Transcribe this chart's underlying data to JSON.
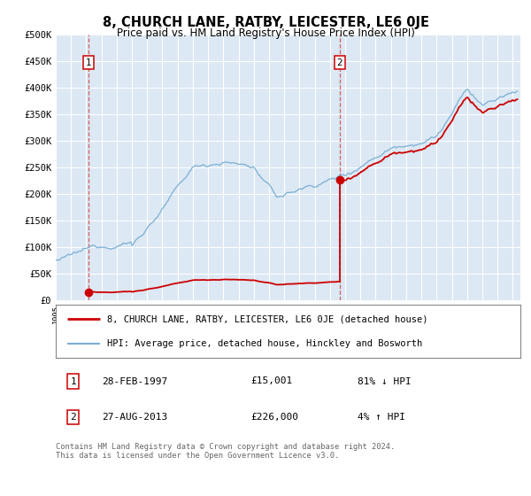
{
  "title": "8, CHURCH LANE, RATBY, LEICESTER, LE6 0JE",
  "subtitle": "Price paid vs. HM Land Registry's House Price Index (HPI)",
  "background_color": "#ffffff",
  "plot_bg_color": "#dce8f4",
  "grid_color": "#ffffff",
  "ylim": [
    0,
    500000
  ],
  "yticks": [
    0,
    50000,
    100000,
    150000,
    200000,
    250000,
    300000,
    350000,
    400000,
    450000,
    500000
  ],
  "ytick_labels": [
    "£0",
    "£50K",
    "£100K",
    "£150K",
    "£200K",
    "£250K",
    "£300K",
    "£350K",
    "£400K",
    "£450K",
    "£500K"
  ],
  "sale1_date": 1997.16,
  "sale1_price": 15001,
  "sale1_label": "1",
  "sale2_date": 2013.65,
  "sale2_price": 226000,
  "sale2_label": "2",
  "hpi_line_color": "#7bafd4",
  "sale_line_color": "#cc0000",
  "sale_dot_color": "#cc0000",
  "vline_color": "#cc0000",
  "legend_line1": "8, CHURCH LANE, RATBY, LEICESTER, LE6 0JE (detached house)",
  "legend_line2": "HPI: Average price, detached house, Hinckley and Bosworth",
  "table_row1": [
    "1",
    "28-FEB-1997",
    "£15,001",
    "81% ↓ HPI"
  ],
  "table_row2": [
    "2",
    "27-AUG-2013",
    "£226,000",
    "4% ↑ HPI"
  ],
  "footnote": "Contains HM Land Registry data © Crown copyright and database right 2024.\nThis data is licensed under the Open Government Licence v3.0.",
  "xmin": 1995,
  "xmax": 2025.5
}
